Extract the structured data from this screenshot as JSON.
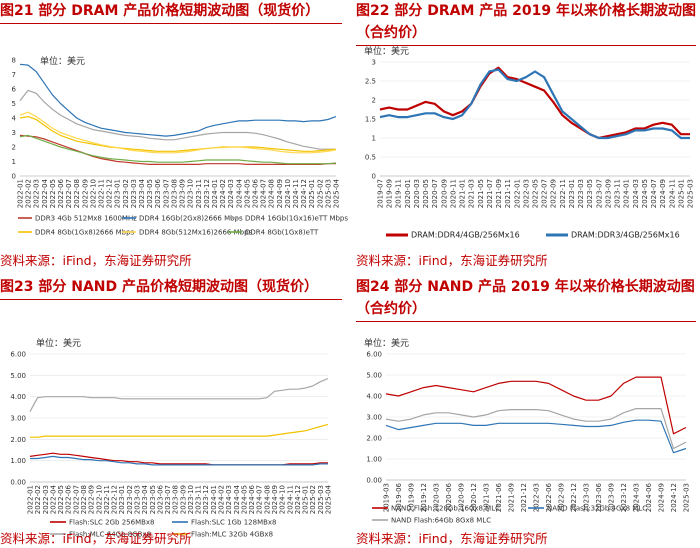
{
  "panels": [
    {
      "id": "p21",
      "title": "图21 部分 DRAM 产品价格短期波动图（现货价）",
      "source": "资料来源：iFind，东海证券研究所"
    },
    {
      "id": "p22",
      "title": "图22 部分 DRAM 产品 2019 年以来价格长期波动图（合约价）",
      "source": "资料来源：iFind，东海证券研究所"
    },
    {
      "id": "p23",
      "title": "图23 部分 NAND 产品价格短期波动图（现货价）",
      "source": "资料来源：iFind，东海证券研究所"
    },
    {
      "id": "p24",
      "title": "图24 部分 NAND 产品 2019 年以来价格长期波动图（合约价）",
      "source": "资料来源：iFind，东海证券研究所"
    }
  ],
  "chart_data": [
    {
      "type": "line",
      "unit_label": "单位：美元",
      "ylim": [
        0,
        8
      ],
      "yticks": [
        "0",
        "1",
        "2",
        "3",
        "4",
        "5",
        "6",
        "7",
        "8"
      ],
      "x": [
        "2022-01",
        "2022-02",
        "2022-03",
        "2022-04",
        "2022-05",
        "2022-06",
        "2022-07",
        "2022-08",
        "2022-09",
        "2022-10",
        "2022-11",
        "2022-12",
        "2023-01",
        "2023-02",
        "2023-03",
        "2023-04",
        "2023-05",
        "2023-06",
        "2023-07",
        "2023-08",
        "2023-09",
        "2023-10",
        "2023-11",
        "2023-12",
        "2024-01",
        "2024-02",
        "2024-03",
        "2024-04",
        "2024-05",
        "2024-06",
        "2024-07",
        "2024-08",
        "2024-09",
        "2024-10",
        "2024-11",
        "2024-12",
        "2025-01",
        "2025-02",
        "2025-03",
        "2025-04"
      ],
      "series": [
        {
          "name": "DDR3 4Gb 512Mx8 1600MHz",
          "color": "#c0392b",
          "values": [
            2.8,
            2.75,
            2.7,
            2.55,
            2.35,
            2.15,
            1.95,
            1.75,
            1.55,
            1.35,
            1.2,
            1.1,
            1.0,
            0.95,
            0.9,
            0.85,
            0.8,
            0.8,
            0.8,
            0.8,
            0.8,
            0.8,
            0.8,
            0.85,
            0.85,
            0.85,
            0.85,
            0.85,
            0.8,
            0.8,
            0.8,
            0.8,
            0.8,
            0.8,
            0.8,
            0.8,
            0.8,
            0.8,
            0.85,
            0.85
          ]
        },
        {
          "name": "DDR4 16Gb(2Gx8)2666 Mbps",
          "color": "#2e75b6",
          "values": [
            7.7,
            7.65,
            7.2,
            6.4,
            5.6,
            5.0,
            4.5,
            4.0,
            3.7,
            3.5,
            3.3,
            3.2,
            3.1,
            3.0,
            2.95,
            2.9,
            2.85,
            2.8,
            2.75,
            2.8,
            2.9,
            3.0,
            3.1,
            3.35,
            3.5,
            3.6,
            3.7,
            3.8,
            3.8,
            3.85,
            3.85,
            3.85,
            3.85,
            3.8,
            3.8,
            3.75,
            3.8,
            3.8,
            3.9,
            4.1
          ]
        },
        {
          "name": "DDR4 16Gb(1Gx16)eTT Mbps",
          "color": "#a6a6a6",
          "values": [
            5.2,
            5.9,
            5.7,
            5.1,
            4.6,
            4.2,
            3.9,
            3.6,
            3.4,
            3.2,
            3.1,
            3.0,
            2.9,
            2.8,
            2.75,
            2.7,
            2.6,
            2.55,
            2.5,
            2.5,
            2.6,
            2.7,
            2.8,
            2.9,
            2.95,
            3.0,
            3.0,
            3.0,
            3.0,
            2.95,
            2.85,
            2.7,
            2.55,
            2.35,
            2.2,
            2.05,
            1.95,
            1.85,
            1.85,
            1.85
          ]
        },
        {
          "name": "DDR4 8Gb(1Gx8)2666 Mbps",
          "color": "#f2c200",
          "values": [
            4.0,
            4.1,
            3.9,
            3.5,
            3.1,
            2.8,
            2.6,
            2.4,
            2.3,
            2.2,
            2.1,
            2.0,
            1.95,
            1.9,
            1.85,
            1.8,
            1.75,
            1.7,
            1.7,
            1.7,
            1.75,
            1.8,
            1.85,
            1.9,
            1.95,
            2.0,
            2.0,
            2.0,
            2.0,
            2.0,
            1.95,
            1.9,
            1.85,
            1.8,
            1.75,
            1.7,
            1.7,
            1.75,
            1.8,
            1.85
          ]
        },
        {
          "name": "DDR4 8Gb(512Mx16)2666 Mbps",
          "color": "#ffd84d",
          "values": [
            4.2,
            4.4,
            4.1,
            3.7,
            3.3,
            3.0,
            2.8,
            2.6,
            2.45,
            2.3,
            2.15,
            2.05,
            1.95,
            1.85,
            1.75,
            1.7,
            1.65,
            1.6,
            1.6,
            1.6,
            1.65,
            1.7,
            1.8,
            1.9,
            1.95,
            1.95,
            2.0,
            2.0,
            1.95,
            1.9,
            1.85,
            1.8,
            1.7,
            1.65,
            1.6,
            1.6,
            1.6,
            1.65,
            1.7,
            1.8
          ]
        },
        {
          "name": "DDR4 8Gb(1Gx8)eTT",
          "color": "#70ad47",
          "values": [
            2.7,
            2.8,
            2.6,
            2.4,
            2.2,
            2.0,
            1.85,
            1.7,
            1.55,
            1.4,
            1.3,
            1.2,
            1.15,
            1.1,
            1.05,
            1.0,
            1.0,
            0.95,
            0.95,
            0.95,
            0.95,
            1.0,
            1.05,
            1.1,
            1.1,
            1.1,
            1.1,
            1.1,
            1.05,
            1.0,
            0.95,
            0.95,
            0.9,
            0.85,
            0.85,
            0.85,
            0.85,
            0.85,
            0.85,
            0.9
          ]
        }
      ]
    },
    {
      "type": "line",
      "unit_label": "单位：美元",
      "ylim": [
        0,
        3.0
      ],
      "yticks": [
        "0",
        "0.5",
        "1",
        "1.5",
        "2",
        "2.5",
        "3"
      ],
      "x": [
        "2019-07",
        "2019-09",
        "2019-11",
        "2020-01",
        "2020-03",
        "2020-05",
        "2020-07",
        "2020-09",
        "2020-11",
        "2021-01",
        "2021-03",
        "2021-05",
        "2021-07",
        "2021-09",
        "2021-11",
        "2022-01",
        "2022-03",
        "2022-05",
        "2022-07",
        "2022-09",
        "2022-11",
        "2023-01",
        "2023-03",
        "2023-05",
        "2023-07",
        "2023-09",
        "2023-11",
        "2024-01",
        "2024-03",
        "2024-05",
        "2024-07",
        "2024-09",
        "2024-11",
        "2025-01",
        "2025-03"
      ],
      "series": [
        {
          "name": "DRAM:DDR4/4GB/256Mx16",
          "color": "#c00000",
          "values": [
            1.75,
            1.8,
            1.75,
            1.75,
            1.85,
            1.95,
            1.9,
            1.7,
            1.6,
            1.7,
            1.9,
            2.35,
            2.7,
            2.85,
            2.6,
            2.55,
            2.45,
            2.35,
            2.25,
            1.95,
            1.6,
            1.4,
            1.25,
            1.1,
            1.0,
            1.05,
            1.1,
            1.15,
            1.25,
            1.25,
            1.35,
            1.4,
            1.35,
            1.1,
            1.1
          ]
        },
        {
          "name": "DRAM:DDR3/4GB/256Mx16",
          "color": "#2e75b6",
          "values": [
            1.55,
            1.6,
            1.55,
            1.55,
            1.6,
            1.65,
            1.65,
            1.55,
            1.5,
            1.6,
            1.9,
            2.4,
            2.75,
            2.8,
            2.55,
            2.5,
            2.6,
            2.75,
            2.6,
            2.15,
            1.7,
            1.5,
            1.3,
            1.1,
            1.0,
            1.0,
            1.05,
            1.1,
            1.2,
            1.2,
            1.25,
            1.25,
            1.2,
            1.0,
            1.0
          ]
        }
      ]
    },
    {
      "type": "line",
      "unit_label": "单位：美元",
      "ylim": [
        0,
        6
      ],
      "yticks": [
        "0.00",
        "1.00",
        "2.00",
        "3.00",
        "4.00",
        "5.00",
        "6.00"
      ],
      "x": [
        "2022-01",
        "2022-02",
        "2022-03",
        "2022-04",
        "2022-05",
        "2022-06",
        "2022-07",
        "2022-08",
        "2022-09",
        "2022-10",
        "2022-11",
        "2022-12",
        "2023-01",
        "2023-02",
        "2023-03",
        "2023-04",
        "2023-05",
        "2023-06",
        "2023-07",
        "2023-08",
        "2023-09",
        "2023-10",
        "2023-11",
        "2023-12",
        "2024-01",
        "2024-02",
        "2024-03",
        "2024-04",
        "2024-05",
        "2024-06",
        "2024-07",
        "2024-08",
        "2024-09",
        "2024-10",
        "2024-11",
        "2024-12",
        "2025-01",
        "2025-02",
        "2025-03",
        "2025-04"
      ],
      "series": [
        {
          "name": "Flash:SLC 2Gb 256MBx8",
          "color": "#c00000",
          "values": [
            1.2,
            1.25,
            1.3,
            1.35,
            1.3,
            1.3,
            1.25,
            1.2,
            1.15,
            1.1,
            1.05,
            1.0,
            1.0,
            0.95,
            0.95,
            0.9,
            0.9,
            0.85,
            0.85,
            0.85,
            0.85,
            0.85,
            0.85,
            0.85,
            0.8,
            0.8,
            0.8,
            0.8,
            0.8,
            0.8,
            0.8,
            0.8,
            0.8,
            0.8,
            0.85,
            0.85,
            0.85,
            0.85,
            0.9,
            0.9
          ]
        },
        {
          "name": "Flash:SLC 1Gb 128MBx8",
          "color": "#2e75b6",
          "values": [
            1.1,
            1.1,
            1.15,
            1.2,
            1.15,
            1.15,
            1.1,
            1.05,
            1.05,
            1.0,
            1.0,
            0.95,
            0.9,
            0.9,
            0.85,
            0.85,
            0.8,
            0.8,
            0.8,
            0.8,
            0.8,
            0.8,
            0.8,
            0.8,
            0.8,
            0.8,
            0.8,
            0.8,
            0.8,
            0.8,
            0.8,
            0.8,
            0.8,
            0.8,
            0.8,
            0.8,
            0.8,
            0.8,
            0.85,
            0.85
          ]
        },
        {
          "name": "Flash:MLC 64Gb 8GBx8",
          "color": "#a6a6a6",
          "values": [
            3.3,
            3.95,
            4.0,
            4.0,
            4.0,
            4.0,
            4.0,
            4.0,
            3.95,
            3.95,
            3.95,
            3.95,
            3.9,
            3.9,
            3.9,
            3.9,
            3.9,
            3.9,
            3.9,
            3.9,
            3.9,
            3.9,
            3.9,
            3.9,
            3.9,
            3.9,
            3.9,
            3.9,
            3.9,
            3.9,
            3.9,
            3.95,
            4.25,
            4.3,
            4.35,
            4.35,
            4.4,
            4.5,
            4.7,
            4.85
          ]
        },
        {
          "name": "Flash:MLC 32Gb 4GBx8",
          "color": "#f2c200",
          "values": [
            2.1,
            2.1,
            2.15,
            2.15,
            2.15,
            2.15,
            2.15,
            2.15,
            2.15,
            2.15,
            2.15,
            2.15,
            2.15,
            2.15,
            2.15,
            2.15,
            2.15,
            2.15,
            2.15,
            2.15,
            2.15,
            2.15,
            2.15,
            2.15,
            2.15,
            2.15,
            2.15,
            2.15,
            2.15,
            2.15,
            2.15,
            2.15,
            2.2,
            2.25,
            2.3,
            2.35,
            2.4,
            2.5,
            2.6,
            2.7
          ]
        }
      ]
    },
    {
      "type": "line",
      "unit_label": "单位：美元",
      "ylim": [
        0,
        6
      ],
      "yticks": [
        "0.00",
        "1.00",
        "2.00",
        "3.00",
        "4.00",
        "5.00",
        "6.00"
      ],
      "x": [
        "2019-03",
        "2019-06",
        "2019-09",
        "2019-12",
        "2020-03",
        "2020-06",
        "2020-09",
        "2020-12",
        "2021-03",
        "2021-06",
        "2021-09",
        "2021-12",
        "2022-03",
        "2022-06",
        "2022-09",
        "2022-12",
        "2023-03",
        "2023-06",
        "2023-09",
        "2023-12",
        "2024-03",
        "2024-06",
        "2024-09",
        "2024-12",
        "2025-03"
      ],
      "series": [
        {
          "name": "NAND Flash:128Gb 16Gx8 MLC",
          "color": "#c00000",
          "values": [
            4.1,
            4.0,
            4.2,
            4.4,
            4.5,
            4.4,
            4.3,
            4.2,
            4.4,
            4.6,
            4.7,
            4.7,
            4.7,
            4.6,
            4.3,
            4.0,
            3.8,
            3.8,
            4.0,
            4.6,
            4.9,
            4.9,
            4.9,
            2.2,
            2.5
          ]
        },
        {
          "name": "NAND Flash:32Gb 4Gx8 MLC",
          "color": "#2e75b6",
          "values": [
            2.6,
            2.4,
            2.5,
            2.6,
            2.7,
            2.7,
            2.7,
            2.6,
            2.6,
            2.7,
            2.7,
            2.7,
            2.7,
            2.7,
            2.65,
            2.6,
            2.55,
            2.55,
            2.6,
            2.75,
            2.85,
            2.85,
            2.8,
            1.3,
            1.5
          ]
        },
        {
          "name": "NAND Flash:64Gb 8Gx8 MLC",
          "color": "#a6a6a6",
          "values": [
            2.9,
            2.8,
            2.9,
            3.1,
            3.2,
            3.2,
            3.1,
            3.0,
            3.1,
            3.3,
            3.35,
            3.35,
            3.35,
            3.3,
            3.1,
            2.9,
            2.8,
            2.8,
            2.9,
            3.2,
            3.4,
            3.4,
            3.4,
            1.5,
            1.8
          ]
        }
      ]
    }
  ]
}
